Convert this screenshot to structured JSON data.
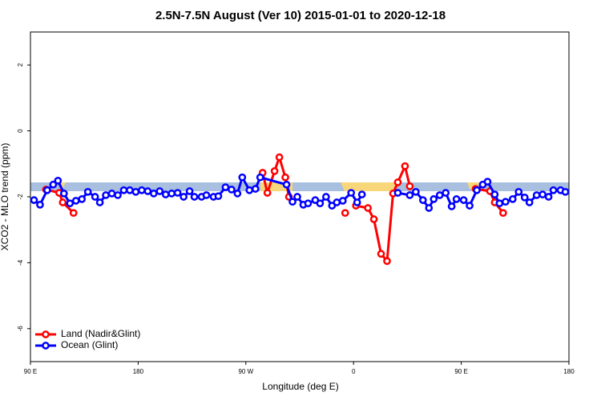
{
  "chart_data": {
    "type": "line",
    "title": "2.5N-7.5N August (Ver 10)   2015-01-01 to 2020-12-18",
    "x_label": "Longitude (deg E)",
    "y_label": "XCO2 - MLO trend (ppm)",
    "xlim": [
      90,
      540
    ],
    "xticks": [
      {
        "value": 90,
        "label": "90 E"
      },
      180,
      {
        "value": 270,
        "label": "90 W"
      },
      {
        "value": 360,
        "label": "0"
      },
      {
        "value": 450,
        "label": "90 E"
      },
      {
        "value": 540,
        "label": "180"
      }
    ],
    "ylim": [
      -7,
      3
    ],
    "yticks": [
      2,
      0,
      -2,
      -4,
      -6
    ],
    "legend": "bottom-left",
    "series": [
      {
        "name": "Land (Nadir&Glint)",
        "color": "#ff0000",
        "x": [
          103,
          114,
          117,
          126,
          200,
          284,
          288,
          294,
          298,
          303,
          306,
          340,
          353,
          357,
          362,
          372,
          377,
          383,
          388,
          393,
          397,
          403,
          407,
          450,
          462,
          474,
          478,
          485
        ],
        "values": [
          -1.78,
          -1.88,
          -2.17,
          -2.49,
          null,
          -1.27,
          -1.88,
          -1.22,
          -0.8,
          -1.41,
          -2.0,
          null,
          -2.49,
          null,
          -2.27,
          -2.34,
          -2.68,
          -3.73,
          -3.95,
          -1.9,
          -1.56,
          -1.07,
          -1.68,
          null,
          -1.76,
          -1.83,
          -2.17,
          -2.49
        ]
      },
      {
        "name": "Ocean (Glint)",
        "color": "#0000ff",
        "x": [
          93,
          98,
          104,
          109,
          113,
          118,
          123,
          128,
          133,
          138,
          144,
          148,
          153,
          158,
          163,
          168,
          173,
          178,
          183,
          188,
          193,
          198,
          203,
          208,
          213,
          218,
          223,
          227,
          233,
          237,
          243,
          247,
          253,
          258,
          263,
          267,
          273,
          278,
          282,
          304,
          309,
          313,
          318,
          322,
          328,
          332,
          337,
          342,
          346,
          351,
          358,
          363,
          367,
          390,
          397,
          407,
          412,
          418,
          423,
          427,
          432,
          437,
          442,
          446,
          452,
          457,
          463,
          468,
          472,
          478,
          482,
          487,
          493,
          498,
          503,
          507,
          513,
          518,
          523,
          527,
          533,
          537
        ],
        "values": [
          -2.1,
          -2.24,
          -1.8,
          -1.63,
          -1.51,
          -1.9,
          -2.2,
          -2.12,
          -2.07,
          -1.85,
          -2.0,
          -2.17,
          -1.95,
          -1.9,
          -1.95,
          -1.8,
          -1.8,
          -1.85,
          -1.8,
          -1.83,
          -1.9,
          -1.83,
          -1.93,
          -1.9,
          -1.88,
          -2.0,
          -1.83,
          -2.0,
          -2.0,
          -1.95,
          -2.0,
          -1.98,
          -1.71,
          -1.78,
          -1.9,
          -1.41,
          -1.8,
          -1.76,
          -1.41,
          -1.63,
          -2.15,
          -2.0,
          -2.24,
          -2.2,
          -2.1,
          -2.2,
          -2.0,
          -2.27,
          -2.17,
          -2.12,
          -1.88,
          -2.17,
          -1.93,
          null,
          -1.88,
          -1.95,
          -1.85,
          -2.1,
          -2.34,
          -2.07,
          -1.95,
          -1.88,
          -2.29,
          -2.07,
          -2.1,
          -2.27,
          -1.8,
          -1.63,
          -1.54,
          -1.93,
          -2.2,
          -2.15,
          -2.07,
          -1.85,
          -2.02,
          -2.17,
          -1.95,
          -1.93,
          -2.0,
          -1.8,
          -1.8,
          -1.85
        ]
      }
    ]
  }
}
